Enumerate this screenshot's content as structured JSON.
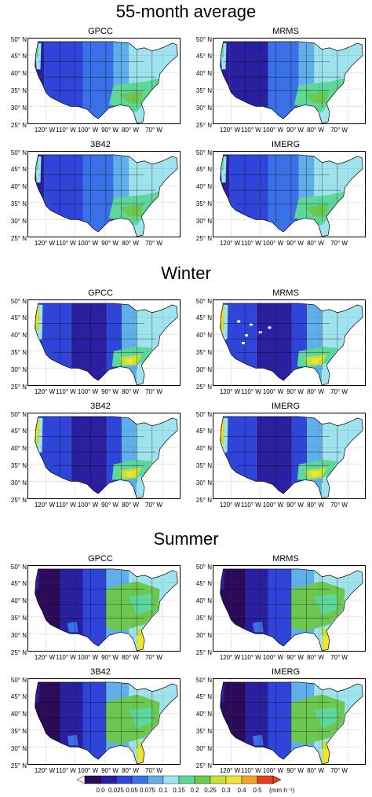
{
  "sections": [
    {
      "title": "55-month average",
      "left": "GPCC",
      "right": "MRMS",
      "left2": "3B42",
      "right2": "IMERG"
    },
    {
      "title": "Winter",
      "left": "GPCC",
      "right": "MRMS",
      "left2": "3B42",
      "right2": "IMERG"
    },
    {
      "title": "Summer",
      "left": "GPCC",
      "right": "MRMS",
      "left2": "3B42",
      "right2": "IMERG"
    }
  ],
  "lat_labels": [
    "50° N",
    "45° N",
    "40° N",
    "35° N",
    "30° N",
    "25° N"
  ],
  "lon_labels": [
    "120° W",
    "110° W",
    "100° W",
    "90° W",
    "80° W",
    "70° W"
  ],
  "colorbar": {
    "ticks": [
      "0.0",
      "0.025",
      "0.05",
      "0.075",
      "0.1",
      "0.15",
      "0.2",
      "0.25",
      "0.3",
      "0.4",
      "0.5"
    ],
    "unit": "(mm h⁻¹)",
    "colors": [
      "#2b0a5a",
      "#2a1fa0",
      "#2f44d8",
      "#3a70e8",
      "#5fb0ea",
      "#9fe3ee",
      "#5ed89a",
      "#6cc84f",
      "#c7e236",
      "#f2e234",
      "#f3a225",
      "#e8401c"
    ]
  }
}
